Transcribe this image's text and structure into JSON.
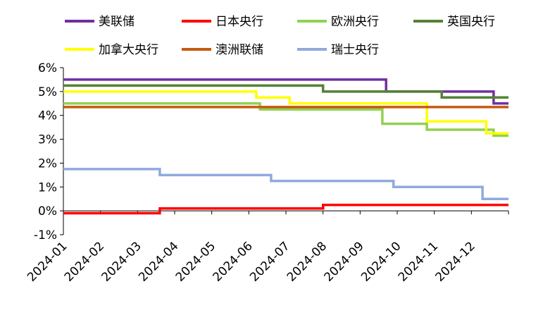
{
  "chart_data": {
    "type": "line",
    "title": "",
    "xlabel": "",
    "ylabel": "",
    "categories": [
      "2024-01",
      "2024-02",
      "2024-03",
      "2024-04",
      "2024-05",
      "2024-06",
      "2024-07",
      "2024-08",
      "2024-09",
      "2024-10",
      "2024-11",
      "2024-12"
    ],
    "xlim": [
      0,
      12
    ],
    "ylim": [
      -1,
      6
    ],
    "ytick_values": [
      -1,
      0,
      1,
      2,
      3,
      4,
      5,
      6
    ],
    "ytick_labels": [
      "-1%",
      "0%",
      "1%",
      "2%",
      "3%",
      "4%",
      "5%",
      "6%"
    ],
    "grid": false,
    "legend_position": "top",
    "series": [
      {
        "name": "美联储",
        "color": "#7030a0",
        "points": [
          [
            0,
            5.5
          ],
          [
            8.7,
            5.5
          ],
          [
            8.7,
            5.0
          ],
          [
            11.6,
            5.0
          ],
          [
            11.6,
            4.5
          ],
          [
            12,
            4.5
          ]
        ]
      },
      {
        "name": "日本央行",
        "color": "#ff0000",
        "points": [
          [
            0,
            -0.1
          ],
          [
            2.6,
            -0.1
          ],
          [
            2.6,
            0.1
          ],
          [
            7.0,
            0.1
          ],
          [
            7.0,
            0.25
          ],
          [
            12,
            0.25
          ]
        ]
      },
      {
        "name": "欧洲央行",
        "color": "#92d050",
        "points": [
          [
            0,
            4.5
          ],
          [
            5.3,
            4.5
          ],
          [
            5.3,
            4.25
          ],
          [
            8.6,
            4.25
          ],
          [
            8.6,
            3.65
          ],
          [
            9.8,
            3.65
          ],
          [
            9.8,
            3.4
          ],
          [
            11.6,
            3.4
          ],
          [
            11.6,
            3.15
          ],
          [
            12,
            3.15
          ]
        ]
      },
      {
        "name": "英国央行",
        "color": "#548235",
        "points": [
          [
            0,
            5.25
          ],
          [
            7.0,
            5.25
          ],
          [
            7.0,
            5.0
          ],
          [
            10.2,
            5.0
          ],
          [
            10.2,
            4.75
          ],
          [
            12,
            4.75
          ]
        ]
      },
      {
        "name": "加拿大央行",
        "color": "#ffff00",
        "points": [
          [
            0,
            5.0
          ],
          [
            5.2,
            5.0
          ],
          [
            5.2,
            4.75
          ],
          [
            6.1,
            4.75
          ],
          [
            6.1,
            4.5
          ],
          [
            9.8,
            4.5
          ],
          [
            9.8,
            3.75
          ],
          [
            11.4,
            3.75
          ],
          [
            11.4,
            3.25
          ],
          [
            12,
            3.25
          ]
        ]
      },
      {
        "name": "澳洲联储",
        "color": "#c55a11",
        "points": [
          [
            0,
            4.35
          ],
          [
            12,
            4.35
          ]
        ]
      },
      {
        "name": "瑞士央行",
        "color": "#8faadc",
        "points": [
          [
            0,
            1.75
          ],
          [
            2.6,
            1.75
          ],
          [
            2.6,
            1.5
          ],
          [
            5.6,
            1.5
          ],
          [
            5.6,
            1.25
          ],
          [
            8.9,
            1.25
          ],
          [
            8.9,
            1.0
          ],
          [
            11.3,
            1.0
          ],
          [
            11.3,
            0.5
          ],
          [
            12,
            0.5
          ]
        ]
      }
    ]
  }
}
